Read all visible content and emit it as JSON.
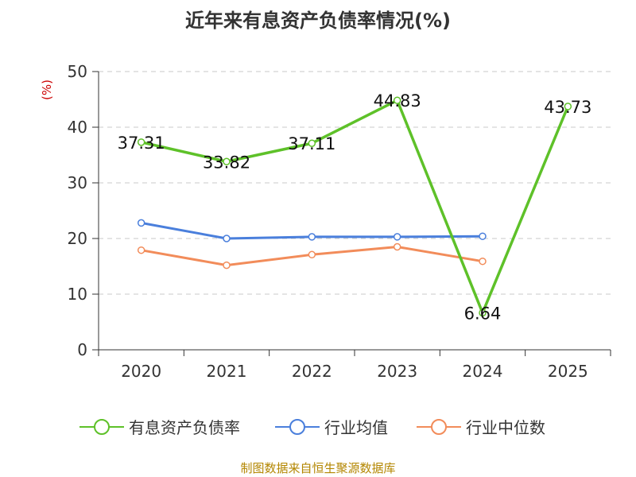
{
  "title": "近年来有息资产负债率情况(%)",
  "y_unit": "(%)",
  "source": "制图数据来自恒生聚源数据库",
  "chart_data": {
    "type": "line",
    "title": "近年来有息资产负债率情况(%)",
    "ylabel": "(%)",
    "xlabel": "",
    "ylim": [
      0,
      50
    ],
    "yticks": [
      0,
      10,
      20,
      30,
      40,
      50
    ],
    "categories": [
      "2020",
      "2021",
      "2022",
      "2023",
      "2024",
      "2025"
    ],
    "grid": true,
    "legend_position": "bottom",
    "series": [
      {
        "name": "有息资产负债率",
        "color": "#5ec129",
        "labels": true,
        "values": [
          37.31,
          33.82,
          37.11,
          44.83,
          6.64,
          43.73
        ]
      },
      {
        "name": "行业均值",
        "color": "#4a7fdc",
        "labels": false,
        "values": [
          22.8,
          20.0,
          20.3,
          20.3,
          20.4,
          null
        ]
      },
      {
        "name": "行业中位数",
        "color": "#f28c5a",
        "labels": false,
        "values": [
          17.9,
          15.2,
          17.1,
          18.5,
          15.9,
          null
        ]
      }
    ]
  }
}
